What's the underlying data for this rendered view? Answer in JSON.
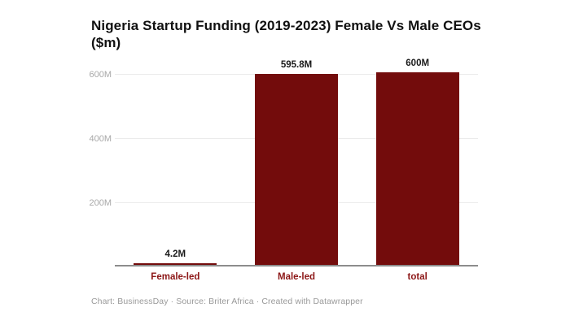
{
  "header": {
    "title_line1": "Nigeria Startup Funding (2019-2023) Female Vs Male CEOs",
    "title_line2": "($m)"
  },
  "chart_data": {
    "type": "bar",
    "title": "Nigeria Startup Funding (2019-2023) Female Vs Male CEOs ($m)",
    "categories": [
      "Female-led",
      "Male-led",
      "total"
    ],
    "values": [
      4.2,
      595.8,
      600
    ],
    "value_labels": [
      "4.2M",
      "595.8M",
      "600M"
    ],
    "xlabel": "",
    "ylabel": "",
    "ylim": [
      0,
      600
    ],
    "yticks": [
      {
        "value": 200,
        "label": "200M"
      },
      {
        "value": 400,
        "label": "400M"
      },
      {
        "value": 600,
        "label": "600M"
      }
    ],
    "grid": true,
    "legend": "none",
    "colors": {
      "bar": "#730c0c",
      "category_label": "#8c1616",
      "value_label": "#1a1a1a",
      "tick_label": "#a8a8a8",
      "gridline": "#ebebeb",
      "baseline": "#8c8c8c"
    }
  },
  "footer": {
    "credit": "Chart: BusinessDay · Source: Briter Africa · Created with Datawrapper"
  }
}
